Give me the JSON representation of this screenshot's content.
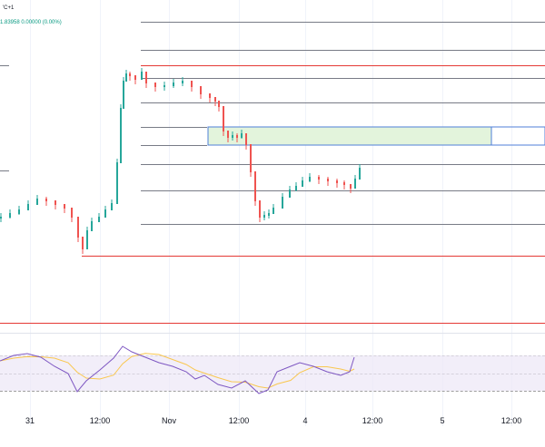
{
  "header": {
    "symbol_suffix": "'C+1",
    "price_readout": "1.83958  0.00000 (0.00%)"
  },
  "x_axis": {
    "labels": [
      "31",
      "12:00",
      "Nov",
      "12:00",
      "4",
      "12:00",
      "5",
      "12:00"
    ]
  },
  "colors": {
    "up_candle": "#26a69a",
    "down_candle": "#ef5350",
    "level_line": "#787b86",
    "range_line": "#e53935",
    "zone_fill": "#e3f4dc",
    "zone_border": "#4f7fd9",
    "indicator_band": "#ede7f6",
    "indicator_line": "#7e57c2",
    "indicator_ma": "#f9c74f"
  }
}
